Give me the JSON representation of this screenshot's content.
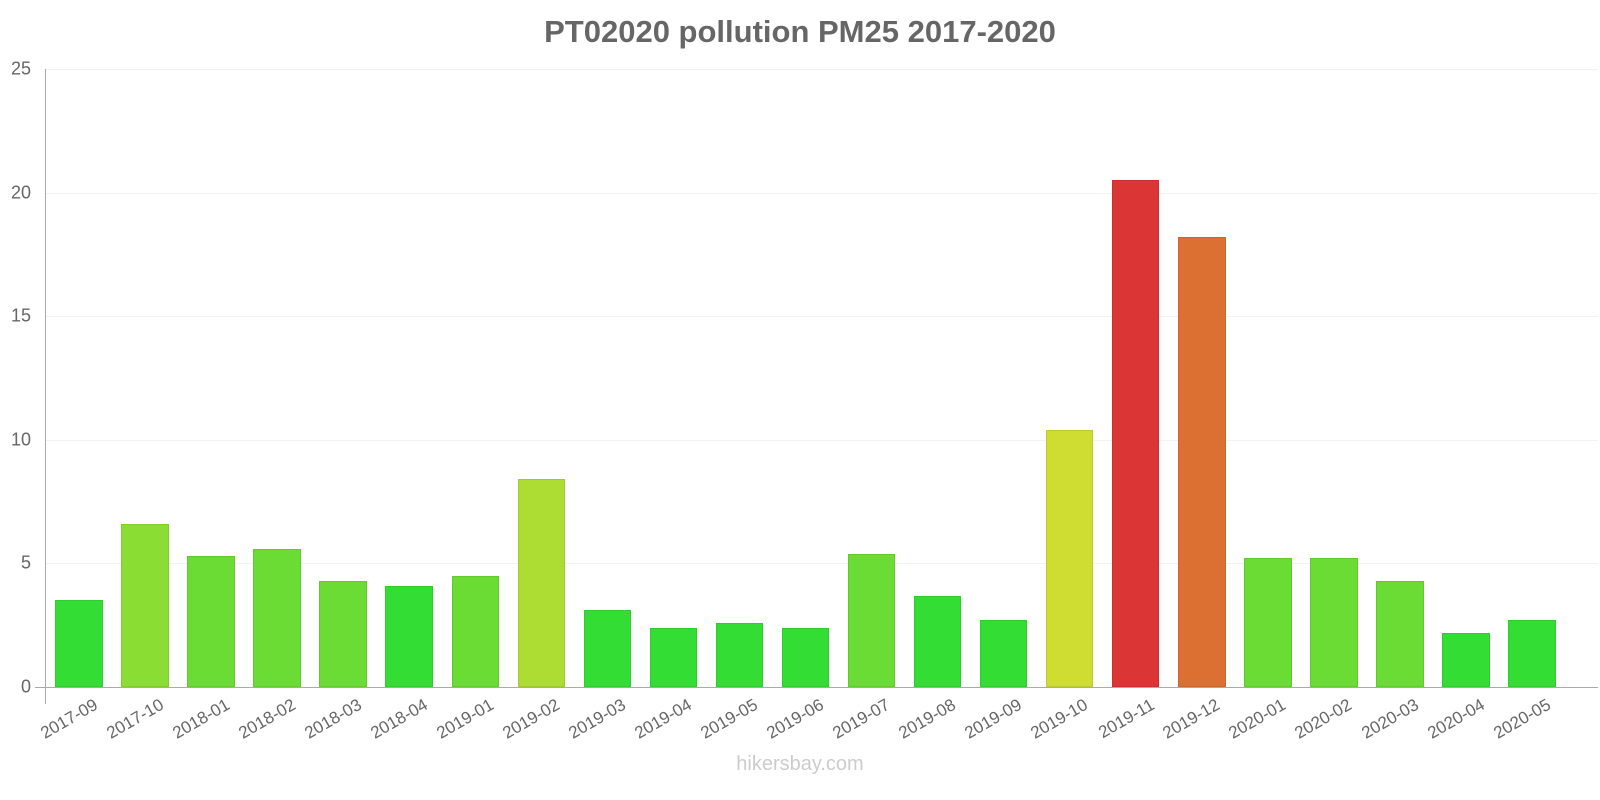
{
  "title": "PT02020 pollution PM25 2017-2020",
  "watermark": "hikersbay.com",
  "chart_data": {
    "type": "bar",
    "title": "PT02020 pollution PM25 2017-2020",
    "xlabel": "",
    "ylabel": "",
    "ylim": [
      0,
      25
    ],
    "yticks": [
      0,
      5,
      10,
      15,
      20,
      25
    ],
    "grid": true,
    "legend": null,
    "categories": [
      "2017-09",
      "2017-10",
      "2018-01",
      "2018-02",
      "2018-03",
      "2018-04",
      "2019-01",
      "2019-02",
      "2019-03",
      "2019-04",
      "2019-05",
      "2019-06",
      "2019-07",
      "2019-08",
      "2019-09",
      "2019-10",
      "2019-11",
      "2019-12",
      "2020-01",
      "2020-02",
      "2020-03",
      "2020-04",
      "2020-05"
    ],
    "values": [
      3.5,
      6.6,
      5.3,
      5.6,
      4.3,
      4.1,
      4.5,
      8.4,
      3.1,
      2.4,
      2.6,
      2.4,
      5.4,
      3.7,
      2.7,
      10.4,
      20.5,
      18.2,
      5.2,
      5.2,
      4.3,
      2.2,
      2.7
    ],
    "colors": [
      "#33dd33",
      "#8ade33",
      "#6bdc33",
      "#6bdc33",
      "#6bdc33",
      "#33dd33",
      "#6bdc33",
      "#addd33",
      "#33dd33",
      "#33dd33",
      "#33dd33",
      "#33dd33",
      "#6bdc33",
      "#33dd33",
      "#33dd33",
      "#cfdd33",
      "#dc3535",
      "#dc7033",
      "#6bdc33",
      "#6bdc33",
      "#6bdc33",
      "#33dd33",
      "#33dd33"
    ]
  }
}
